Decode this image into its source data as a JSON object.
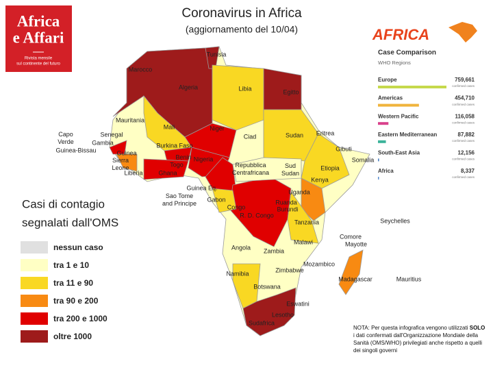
{
  "title": "Coronavirus in Africa",
  "subtitle": "(aggiornamento del 10/04)",
  "logo": {
    "line1": "Africa",
    "line2": "e Affari",
    "tagline1": "Rivista mensile",
    "tagline2": "sul continente del futuro"
  },
  "brand": "AFRICA",
  "legend": {
    "heading": [
      "Casi di contagio",
      "segnalati dall'OMS"
    ],
    "items": [
      {
        "label": "nessun caso",
        "color": "#e0e0e0"
      },
      {
        "label": "tra 1 e 10",
        "color": "#ffffc4"
      },
      {
        "label": "tra 11 e 90",
        "color": "#f9d823"
      },
      {
        "label": "tra 90 e 200",
        "color": "#f88a12"
      },
      {
        "label": "tra 200 e 1000",
        "color": "#e00000"
      },
      {
        "label": "oltre 1000",
        "color": "#9e1b1b"
      }
    ]
  },
  "countries": [
    "Tunisia",
    "Marocco",
    "Algeria",
    "Libia",
    "Egitto",
    "Mauritania",
    "Mali",
    "Niger",
    "Ciad",
    "Sudan",
    "Eritrea",
    "Gibuti",
    "Somalia",
    "Etiopia",
    [
      "Sud",
      "Sudan"
    ],
    [
      "Repubblica",
      "Centrafricana"
    ],
    [
      "Capo",
      "Verde"
    ],
    "Senegal",
    "Gambia",
    "Guinea-Bissau",
    "Guinea",
    [
      "Sierra",
      "Leone"
    ],
    "Burkina Faso",
    "Benin",
    "Togo",
    "Ghana",
    "Liberia",
    "Nigeria",
    "Guinea Eq.",
    [
      "Sao Tome",
      "and Principe"
    ],
    "Gabon",
    "Congo",
    "R. D. Congo",
    "Ruanda",
    "Burundi",
    "Uganda",
    "Kenya",
    "Tanzania",
    "Seychelles",
    "Comore",
    "Mayotte",
    "Malawi",
    "Angola",
    "Zambia",
    "Mozambico",
    "Zimbabwe",
    "Namibia",
    "Botswana",
    "Madagascar",
    "Mauritius",
    "Eswatini",
    "Lesotho",
    "Sudafrica"
  ],
  "comparison": {
    "title": "Case Comparison",
    "subtitle": "WHO Regions",
    "unit": "confirmed cases",
    "regions": [
      {
        "name": "Europe",
        "value": 759661,
        "value_label": "759,661",
        "color": "#c6d94c"
      },
      {
        "name": "Americas",
        "value": 454710,
        "value_label": "454,710",
        "color": "#f0b43c"
      },
      {
        "name": "Western Pacific",
        "value": 116058,
        "value_label": "116,058",
        "color": "#d9418c"
      },
      {
        "name": "Eastern Mediterranean",
        "value": 87882,
        "value_label": "87,882",
        "color": "#3bb39a"
      },
      {
        "name": "South-East Asia",
        "value": 12156,
        "value_label": "12,156",
        "color": "#4a7fc1"
      },
      {
        "name": "Africa",
        "value": 8337,
        "value_label": "8,337",
        "color": "#5b8fd0"
      }
    ]
  },
  "note": {
    "before": "NOTA: Per questa infografica vengono utilizzati",
    "bold": "SOLO",
    "after": "i dati confermati dall'Organizzazione Mondiale della Sanità (OMS/WHO) privilegiati anche rispetto a quelli dei singoli  governi"
  }
}
